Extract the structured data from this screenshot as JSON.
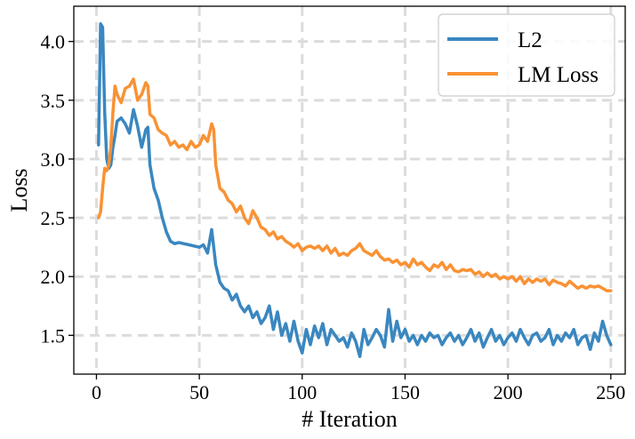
{
  "chart_data": {
    "type": "line",
    "xlabel": "# Iteration",
    "ylabel": "Loss",
    "xlim": [
      -11,
      257
    ],
    "ylim": [
      1.17,
      4.3
    ],
    "xticks": [
      0,
      50,
      100,
      150,
      200,
      250
    ],
    "yticks": [
      1.5,
      2.0,
      2.5,
      3.0,
      3.5,
      4.0
    ],
    "grid": true,
    "legend_position": "top-right",
    "series": [
      {
        "name": "L2",
        "color": "#3a87c0",
        "x": [
          1,
          2,
          3,
          4,
          5,
          6,
          7,
          8,
          9,
          10,
          12,
          14,
          16,
          18,
          20,
          22,
          24,
          25,
          26,
          28,
          30,
          32,
          34,
          36,
          38,
          40,
          45,
          50,
          52,
          54,
          56,
          58,
          60,
          62,
          64,
          66,
          68,
          70,
          72,
          74,
          76,
          78,
          80,
          82,
          84,
          86,
          88,
          90,
          92,
          94,
          96,
          98,
          100,
          102,
          104,
          106,
          108,
          110,
          112,
          114,
          116,
          118,
          120,
          122,
          124,
          126,
          128,
          130,
          132,
          134,
          136,
          138,
          140,
          142,
          144,
          146,
          148,
          150,
          152,
          154,
          156,
          158,
          160,
          162,
          164,
          166,
          168,
          170,
          172,
          174,
          176,
          178,
          180,
          182,
          184,
          186,
          188,
          190,
          192,
          194,
          196,
          198,
          200,
          202,
          204,
          206,
          208,
          210,
          212,
          214,
          216,
          218,
          220,
          222,
          224,
          226,
          228,
          230,
          232,
          234,
          236,
          238,
          240,
          242,
          244,
          246,
          248,
          250
        ],
        "y": [
          3.12,
          4.15,
          4.12,
          3.4,
          3.0,
          2.92,
          2.95,
          3.1,
          3.2,
          3.32,
          3.35,
          3.3,
          3.22,
          3.42,
          3.28,
          3.1,
          3.25,
          3.27,
          2.95,
          2.75,
          2.65,
          2.5,
          2.38,
          2.3,
          2.28,
          2.29,
          2.27,
          2.25,
          2.27,
          2.2,
          2.4,
          2.1,
          1.95,
          1.9,
          1.88,
          1.8,
          1.85,
          1.75,
          1.7,
          1.75,
          1.65,
          1.7,
          1.6,
          1.65,
          1.75,
          1.55,
          1.7,
          1.5,
          1.6,
          1.45,
          1.62,
          1.45,
          1.35,
          1.55,
          1.42,
          1.58,
          1.48,
          1.6,
          1.42,
          1.55,
          1.5,
          1.45,
          1.48,
          1.4,
          1.52,
          1.45,
          1.32,
          1.55,
          1.42,
          1.48,
          1.55,
          1.5,
          1.4,
          1.72,
          1.45,
          1.62,
          1.48,
          1.55,
          1.45,
          1.5,
          1.42,
          1.5,
          1.45,
          1.52,
          1.48,
          1.5,
          1.42,
          1.48,
          1.52,
          1.45,
          1.5,
          1.42,
          1.48,
          1.55,
          1.45,
          1.52,
          1.4,
          1.48,
          1.55,
          1.45,
          1.5,
          1.42,
          1.48,
          1.52,
          1.45,
          1.55,
          1.48,
          1.42,
          1.5,
          1.52,
          1.45,
          1.48,
          1.55,
          1.42,
          1.5,
          1.45,
          1.52,
          1.48,
          1.55,
          1.42,
          1.48,
          1.5,
          1.38,
          1.52,
          1.45,
          1.62,
          1.5,
          1.42
        ]
      },
      {
        "name": "LM Loss",
        "color": "#f99234",
        "x": [
          1,
          2,
          3,
          4,
          5,
          6,
          7,
          8,
          9,
          10,
          12,
          14,
          16,
          18,
          20,
          22,
          24,
          25,
          26,
          28,
          30,
          32,
          34,
          36,
          38,
          40,
          42,
          44,
          46,
          48,
          50,
          52,
          54,
          56,
          57,
          58,
          60,
          62,
          64,
          66,
          68,
          70,
          72,
          74,
          76,
          78,
          80,
          82,
          84,
          86,
          88,
          90,
          92,
          94,
          96,
          98,
          100,
          102,
          104,
          106,
          108,
          110,
          112,
          114,
          116,
          118,
          120,
          122,
          124,
          126,
          128,
          130,
          132,
          134,
          136,
          138,
          140,
          142,
          144,
          146,
          148,
          150,
          152,
          154,
          156,
          158,
          160,
          162,
          164,
          166,
          168,
          170,
          172,
          174,
          176,
          178,
          180,
          182,
          184,
          186,
          188,
          190,
          192,
          194,
          196,
          198,
          200,
          202,
          204,
          206,
          208,
          210,
          212,
          214,
          216,
          218,
          220,
          222,
          224,
          226,
          228,
          230,
          232,
          234,
          236,
          238,
          240,
          242,
          244,
          246,
          248,
          250
        ],
        "y": [
          2.5,
          2.55,
          2.75,
          2.92,
          2.9,
          2.95,
          3.1,
          3.4,
          3.62,
          3.55,
          3.48,
          3.6,
          3.62,
          3.68,
          3.5,
          3.55,
          3.65,
          3.62,
          3.38,
          3.35,
          3.25,
          3.22,
          3.2,
          3.12,
          3.15,
          3.1,
          3.12,
          3.08,
          3.15,
          3.1,
          3.12,
          3.2,
          3.15,
          3.3,
          3.25,
          2.95,
          2.75,
          2.72,
          2.65,
          2.62,
          2.55,
          2.6,
          2.5,
          2.45,
          2.56,
          2.5,
          2.42,
          2.4,
          2.35,
          2.38,
          2.32,
          2.34,
          2.3,
          2.28,
          2.25,
          2.28,
          2.22,
          2.25,
          2.26,
          2.24,
          2.26,
          2.22,
          2.26,
          2.2,
          2.24,
          2.18,
          2.2,
          2.18,
          2.22,
          2.24,
          2.28,
          2.22,
          2.2,
          2.18,
          2.22,
          2.17,
          2.14,
          2.15,
          2.12,
          2.14,
          2.1,
          2.12,
          2.08,
          2.15,
          2.1,
          2.12,
          2.08,
          2.05,
          2.1,
          2.08,
          2.12,
          2.06,
          2.1,
          2.05,
          2.04,
          2.06,
          2.05,
          2.06,
          2.02,
          2.04,
          2.0,
          2.03,
          2.0,
          2.02,
          1.98,
          2.0,
          1.98,
          2.0,
          1.96,
          2.0,
          1.94,
          1.98,
          1.95,
          1.98,
          1.96,
          1.98,
          1.93,
          1.97,
          1.95,
          1.94,
          1.92,
          1.96,
          1.93,
          1.9,
          1.92,
          1.9,
          1.92,
          1.91,
          1.92,
          1.9,
          1.88,
          1.88
        ]
      }
    ]
  }
}
